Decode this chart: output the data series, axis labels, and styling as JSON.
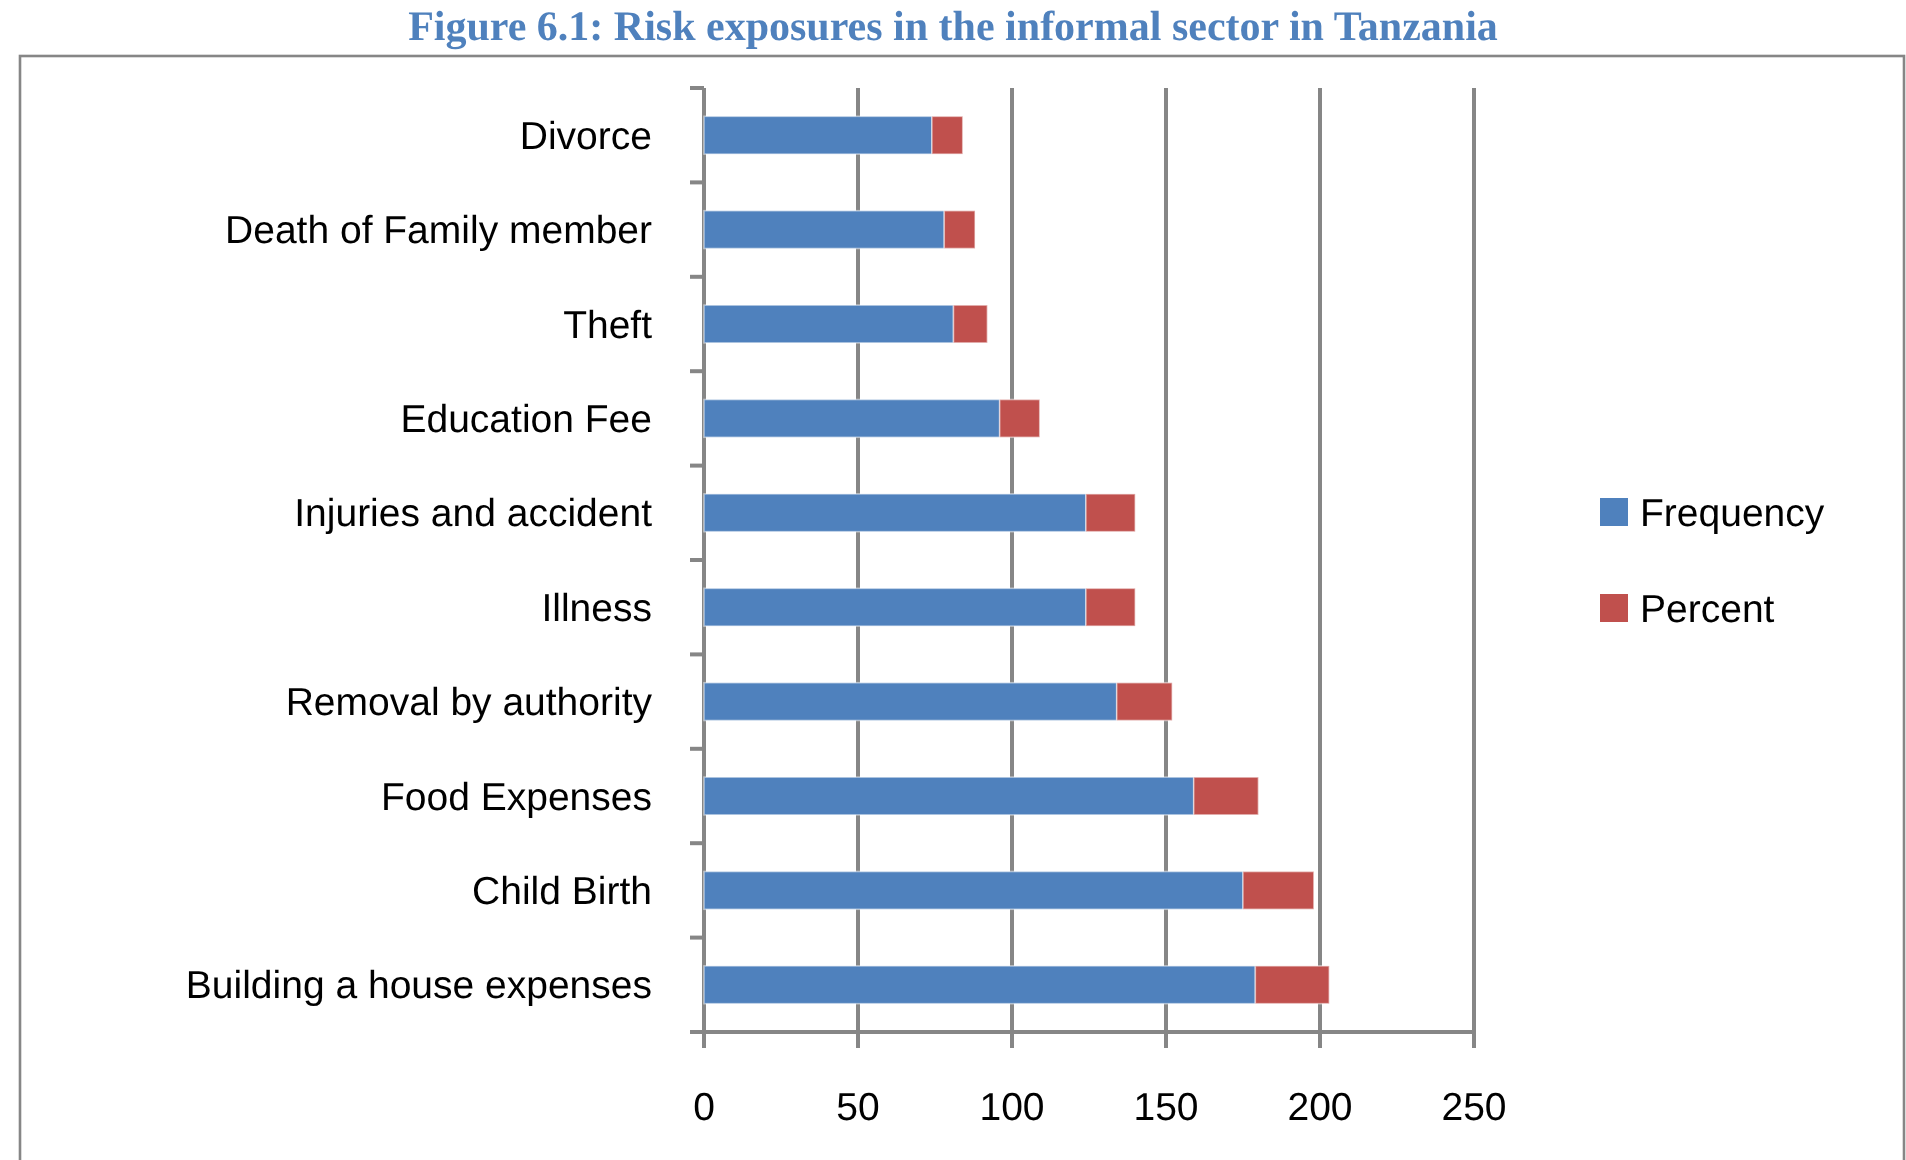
{
  "chart_data": {
    "type": "bar",
    "orientation": "horizontal",
    "stacked": true,
    "title": "Figure 6.1: Risk exposures in the informal sector in Tanzania",
    "categories": [
      "Divorce",
      "Death of Family member",
      "Theft",
      "Education Fee",
      "Injuries and accident",
      "Illness",
      "Removal by authority",
      "Food Expenses",
      "Child Birth",
      "Building a house expenses"
    ],
    "series": [
      {
        "name": "Frequency",
        "color": "#4f81bd",
        "values": [
          74,
          78,
          81,
          96,
          124,
          124,
          134,
          159,
          175,
          179
        ]
      },
      {
        "name": "Percent",
        "color": "#c0504d",
        "values": [
          10,
          10,
          11,
          13,
          16,
          16,
          18,
          21,
          23,
          24
        ]
      }
    ],
    "xlim": [
      0,
      250
    ],
    "xticks": [
      0,
      50,
      100,
      150,
      200,
      250
    ],
    "grid": "x",
    "legend": "right"
  }
}
